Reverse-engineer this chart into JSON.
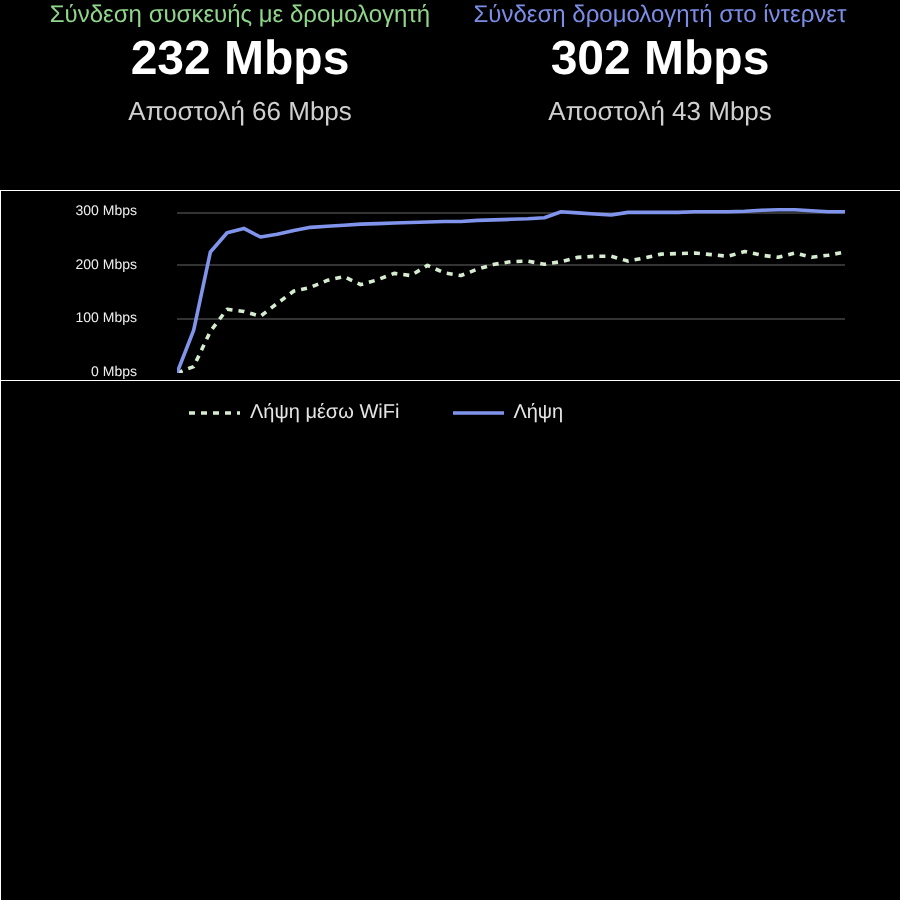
{
  "chart_data": {
    "type": "line",
    "annotations": [
      "Σύνδεση συσκευής με δρομολογητή",
      "232 Mbps",
      "Αποστολή 66 Mbps",
      "Σύνδεση δρομολογητή στο ίντερνετ",
      "302 Mbps",
      "Αποστολή 43 Mbps"
    ],
    "categories": [
      null,
      null,
      null,
      null,
      null,
      null,
      null,
      null,
      null,
      null,
      null,
      null,
      null,
      null,
      null,
      null,
      null,
      null,
      null,
      null,
      null,
      null,
      null,
      null,
      null,
      null,
      null,
      null,
      null,
      null,
      null,
      null,
      null,
      null,
      null,
      null,
      null,
      null,
      null,
      null,
      null
    ],
    "series": [
      {
        "name": "Λήψη μέσω WiFi",
        "color": "#d6ecd0",
        "line_style": "dashed",
        "values": [
          0,
          12,
          78,
          119,
          115,
          106,
          130,
          153,
          160,
          173,
          180,
          165,
          174,
          186,
          182,
          201,
          187,
          182,
          194,
          203,
          208,
          209,
          203,
          208,
          216,
          218,
          218,
          209,
          215,
          222,
          223,
          224,
          221,
          218,
          227,
          220,
          216,
          224,
          216,
          220,
          226
        ]
      },
      {
        "name": "Λήψη",
        "color": "#8094ec",
        "line_style": "solid",
        "values": [
          0,
          80,
          226,
          262,
          270,
          254,
          259,
          266,
          272,
          274,
          276,
          278,
          279,
          280,
          281,
          282,
          283,
          283,
          285,
          286,
          287,
          288,
          290,
          301,
          299,
          297,
          295,
          300,
          300,
          300,
          300,
          301,
          301,
          301,
          302,
          304,
          305,
          305,
          303,
          301,
          301
        ]
      }
    ],
    "ylim": [
      0,
      310
    ],
    "yticks": [
      {
        "value": 0,
        "label": "0 Mbps"
      },
      {
        "value": 100,
        "label": "100 Mbps"
      },
      {
        "value": 200,
        "label": "200 Mbps"
      },
      {
        "value": 300,
        "label": "300 Mbps"
      }
    ],
    "grid": "y",
    "legend": "bottom"
  }
}
